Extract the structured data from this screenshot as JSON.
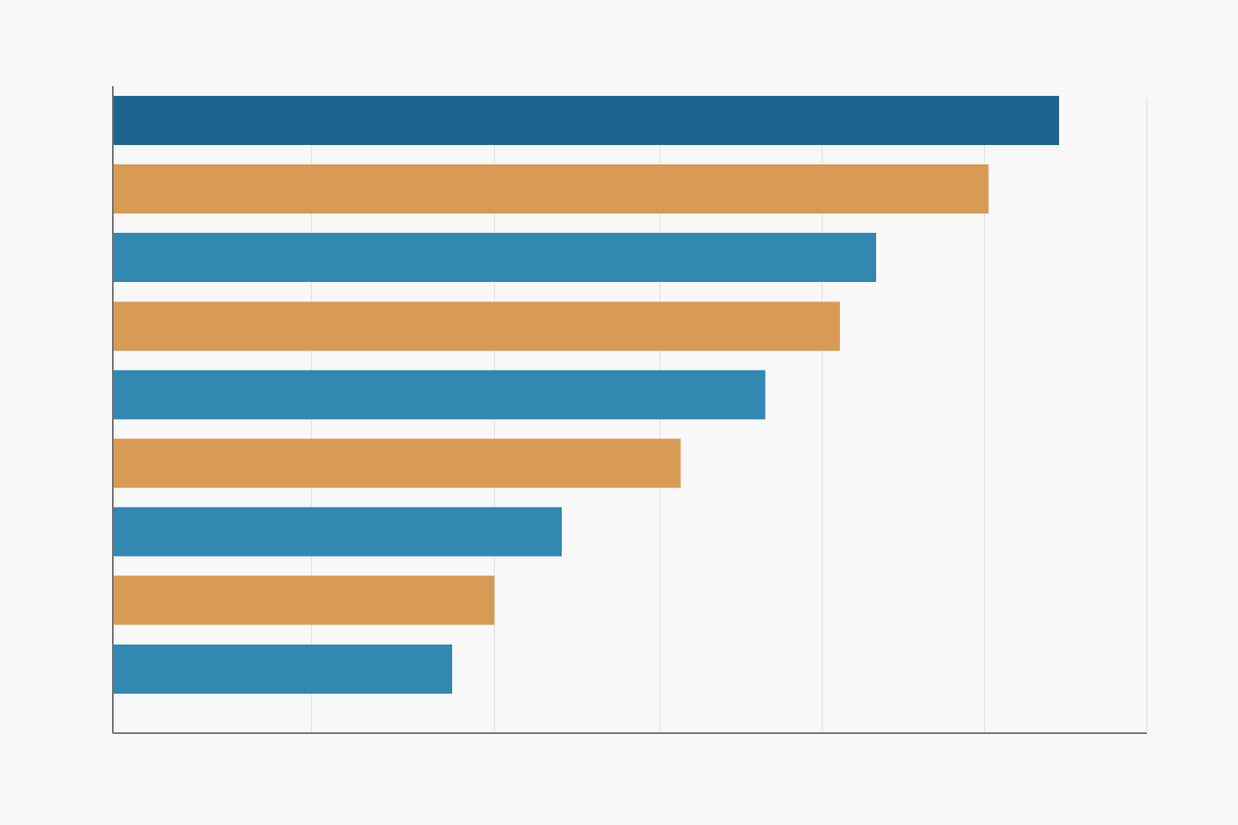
{
  "chart_data": {
    "type": "bar",
    "orientation": "horizontal",
    "title": "",
    "xlabel": "",
    "ylabel": "",
    "grid": true,
    "legend": "none",
    "xlim": [
      0,
      100
    ],
    "gridlines_x": [
      19.2,
      36.9,
      52.9,
      68.6,
      84.3,
      100
    ],
    "values": [
      91.5,
      84.7,
      73.8,
      70.3,
      63.1,
      54.9,
      43.4,
      36.9,
      32.8
    ],
    "colors": [
      "#1c6591",
      "#d79b55",
      "#3288b1",
      "#d79b55",
      "#3288b1",
      "#d79b55",
      "#3288b1",
      "#d79b55",
      "#3288b1"
    ],
    "palette": {
      "accent_dark_blue": "#1c6591",
      "blue": "#3288b1",
      "orange": "#d79b55",
      "background": "#f8f8f8",
      "gridline": "#dcdcdc",
      "axis": "#6f6f6f"
    }
  }
}
